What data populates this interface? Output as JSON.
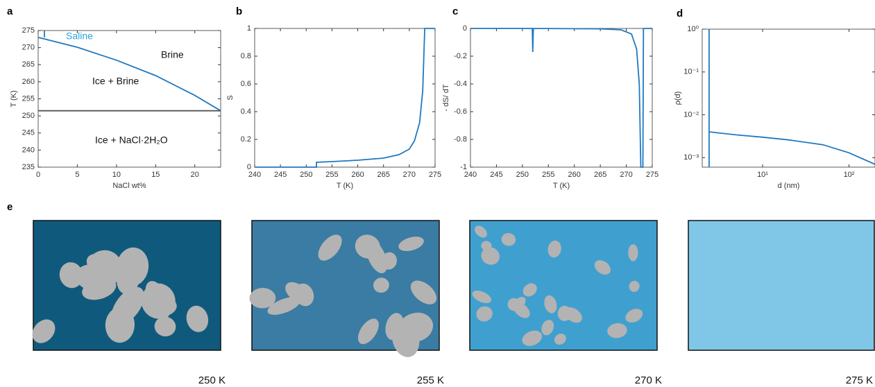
{
  "chart_data": [
    {
      "type": "line",
      "panel_label": "a",
      "xlabel": "NaCl wt%",
      "ylabel": "T (K)",
      "xlim": [
        0,
        23.3
      ],
      "ylim": [
        235,
        275
      ],
      "xticks": [
        0,
        5,
        10,
        15,
        20
      ],
      "yticks": [
        235,
        240,
        245,
        250,
        255,
        260,
        265,
        270,
        275
      ],
      "series": [
        {
          "color": "#1f78c1",
          "x": [
            0,
            5,
            10,
            15,
            20,
            23.3
          ],
          "values": [
            273,
            270.1,
            266.3,
            261.8,
            256,
            251.5
          ]
        },
        {
          "color": "#555555",
          "x": [
            0,
            23.3
          ],
          "values": [
            251.5,
            251.5
          ]
        },
        {
          "color": "#1f78c1",
          "x": [
            0.8,
            0.8
          ],
          "values": [
            273,
            275
          ]
        }
      ],
      "annotations": [
        {
          "text": "Saline",
          "color": "#29a3dd"
        },
        {
          "text": "Brine",
          "color": "#111111"
        },
        {
          "text": "Ice + Brine",
          "color": "#111111"
        },
        {
          "text": "Ice + NaCl·2H₂O",
          "color": "#111111"
        }
      ]
    },
    {
      "type": "line",
      "panel_label": "b",
      "xlabel": "T (K)",
      "ylabel": "S",
      "xlim": [
        240,
        275
      ],
      "ylim": [
        0,
        1
      ],
      "xticks": [
        240,
        245,
        250,
        255,
        260,
        265,
        270,
        275
      ],
      "yticks": [
        0,
        0.2,
        0.4,
        0.6,
        0.8,
        1
      ],
      "series": [
        {
          "color": "#1f78c1",
          "x": [
            240,
            252,
            252,
            255,
            260,
            265,
            268,
            270,
            271,
            272,
            272.6,
            273,
            275
          ],
          "values": [
            0,
            0,
            0.035,
            0.04,
            0.05,
            0.065,
            0.09,
            0.13,
            0.19,
            0.32,
            0.55,
            1,
            1
          ]
        }
      ]
    },
    {
      "type": "line",
      "panel_label": "c",
      "xlabel": "T (K)",
      "ylabel": "- dS/ dT",
      "xlim": [
        240,
        275
      ],
      "ylim": [
        -1,
        0
      ],
      "xticks": [
        240,
        245,
        250,
        255,
        260,
        265,
        270,
        275
      ],
      "yticks": [
        -1,
        -0.8,
        -0.6,
        -0.4,
        -0.2,
        0
      ],
      "series": [
        {
          "color": "#1f78c1",
          "x": [
            240,
            251.9,
            252,
            252.1,
            265,
            269,
            271,
            272,
            272.5,
            272.8,
            273.2,
            273.3,
            275
          ],
          "values": [
            0,
            0,
            -0.17,
            0,
            -0.003,
            -0.01,
            -0.04,
            -0.15,
            -0.4,
            -1,
            -1,
            0,
            0
          ]
        }
      ]
    },
    {
      "type": "line",
      "panel_label": "d",
      "xlabel": "d (nm)",
      "ylabel": "ρ(d)",
      "xscale": "log",
      "yscale": "log",
      "xlim": [
        2,
        200
      ],
      "ylim": [
        0.0006,
        1
      ],
      "xticks": [
        {
          "value": 10,
          "label": "10¹"
        },
        {
          "value": 100,
          "label": "10²"
        }
      ],
      "yticks": [
        {
          "value": 0.001,
          "label": "10⁻³"
        },
        {
          "value": 0.01,
          "label": "10⁻²"
        },
        {
          "value": 0.1,
          "label": "10⁻¹"
        },
        {
          "value": 1,
          "label": "10⁰"
        }
      ],
      "series": [
        {
          "color": "#1f78c1",
          "x": [
            2.4,
            2.4
          ],
          "values": [
            1,
            0.0006
          ]
        },
        {
          "color": "#1f78c1",
          "x": [
            2.4,
            5,
            10,
            20,
            50,
            100,
            200
          ],
          "values": [
            0.004,
            0.0034,
            0.003,
            0.0026,
            0.002,
            0.0013,
            0.0007
          ]
        }
      ]
    }
  ],
  "panel_e": {
    "panel_label": "e",
    "images": [
      {
        "label": "250 K",
        "color": "#0f5a7c"
      },
      {
        "label": "255 K",
        "color": "#3a7ca3"
      },
      {
        "label": "270 K",
        "color": "#3fa0cf"
      },
      {
        "label": "275 K",
        "color": "#80c7e7"
      }
    ]
  }
}
